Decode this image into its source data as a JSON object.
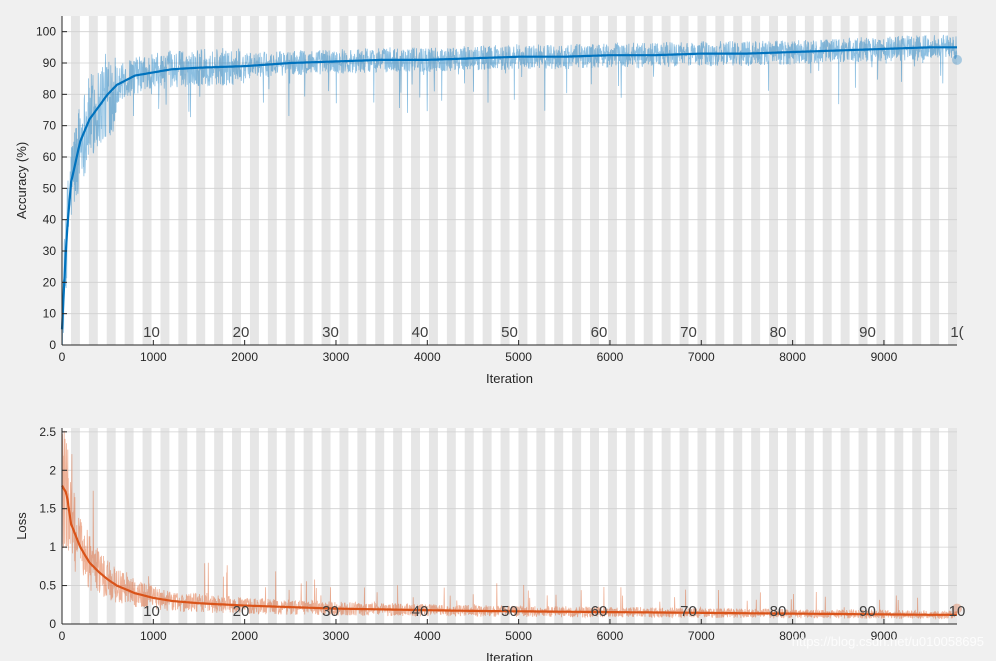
{
  "watermark": "https://blog.csdn.net/u010058695",
  "chart_data": [
    {
      "type": "line",
      "xlabel": "Iteration",
      "ylabel": "Accuracy (%)",
      "xlim": [
        0,
        9800
      ],
      "ylim": [
        0,
        105
      ],
      "xticks": [
        0,
        1000,
        2000,
        3000,
        4000,
        5000,
        6000,
        7000,
        8000,
        9000
      ],
      "xtick_labels": [
        "0",
        "1000",
        "2000",
        "3000",
        "4000",
        "5000",
        "6000",
        "7000",
        "8000",
        "9000"
      ],
      "yticks": [
        0,
        10,
        20,
        30,
        40,
        50,
        60,
        70,
        80,
        90,
        100
      ],
      "ytick_labels": [
        "0",
        "10",
        "20",
        "30",
        "40",
        "50",
        "60",
        "70",
        "80",
        "90",
        "100"
      ],
      "epoch_labels": [
        "10",
        "20",
        "30",
        "40",
        "50",
        "60",
        "70",
        "80",
        "90",
        "1("
      ],
      "epoch_label_x": [
        980,
        1960,
        2940,
        3920,
        4900,
        5880,
        6860,
        7840,
        8820,
        9800
      ],
      "epoch_bands": {
        "count": 100,
        "iterations_per_epoch": 98
      },
      "grid": true,
      "color": "#0072bd",
      "series": [
        {
          "x": [
            0,
            50,
            100,
            200,
            300,
            400,
            500,
            600,
            800,
            1000,
            1200,
            1500,
            2000,
            2500,
            3000,
            3500,
            4000,
            4500,
            5000,
            5500,
            6000,
            6500,
            7000,
            7500,
            8000,
            8500,
            9000,
            9500,
            9800
          ],
          "values": [
            5,
            35,
            52,
            65,
            72,
            76,
            80,
            83,
            86,
            87,
            88,
            88.5,
            89,
            90,
            90.5,
            91,
            91,
            91.5,
            92,
            92,
            92.5,
            92.5,
            93,
            93,
            93.5,
            94,
            94.5,
            95,
            95
          ]
        }
      ],
      "final_marker": {
        "x": 9800,
        "y": 91
      }
    },
    {
      "type": "line",
      "xlabel": "Iteration",
      "ylabel": "Loss",
      "xlim": [
        0,
        9800
      ],
      "ylim": [
        0,
        2.55
      ],
      "xticks": [
        0,
        1000,
        2000,
        3000,
        4000,
        5000,
        6000,
        7000,
        8000,
        9000
      ],
      "xtick_labels": [
        "0",
        "1000",
        "2000",
        "3000",
        "4000",
        "5000",
        "6000",
        "7000",
        "8000",
        "9000"
      ],
      "yticks": [
        0,
        0.5,
        1,
        1.5,
        2,
        2.5
      ],
      "ytick_labels": [
        "0",
        "0.5",
        "1",
        "1.5",
        "2",
        "2.5"
      ],
      "epoch_labels": [
        "10",
        "20",
        "30",
        "40",
        "50",
        "60",
        "70",
        "80",
        "90",
        "10"
      ],
      "epoch_label_x": [
        980,
        1960,
        2940,
        3920,
        4900,
        5880,
        6860,
        7840,
        8820,
        9800
      ],
      "epoch_bands": {
        "count": 100,
        "iterations_per_epoch": 98
      },
      "grid": true,
      "color": "#d95319",
      "series": [
        {
          "x": [
            0,
            50,
            100,
            200,
            300,
            400,
            500,
            600,
            800,
            1000,
            1200,
            1500,
            2000,
            2500,
            3000,
            3500,
            4000,
            4500,
            5000,
            5500,
            6000,
            6500,
            7000,
            7500,
            8000,
            8500,
            9000,
            9500,
            9800
          ],
          "values": [
            1.8,
            1.7,
            1.3,
            1.0,
            0.8,
            0.68,
            0.58,
            0.5,
            0.4,
            0.34,
            0.3,
            0.27,
            0.24,
            0.22,
            0.2,
            0.19,
            0.18,
            0.17,
            0.165,
            0.16,
            0.155,
            0.15,
            0.145,
            0.14,
            0.135,
            0.13,
            0.125,
            0.12,
            0.12
          ]
        }
      ],
      "final_marker": {
        "x": 9800,
        "y": 0.2
      }
    }
  ]
}
